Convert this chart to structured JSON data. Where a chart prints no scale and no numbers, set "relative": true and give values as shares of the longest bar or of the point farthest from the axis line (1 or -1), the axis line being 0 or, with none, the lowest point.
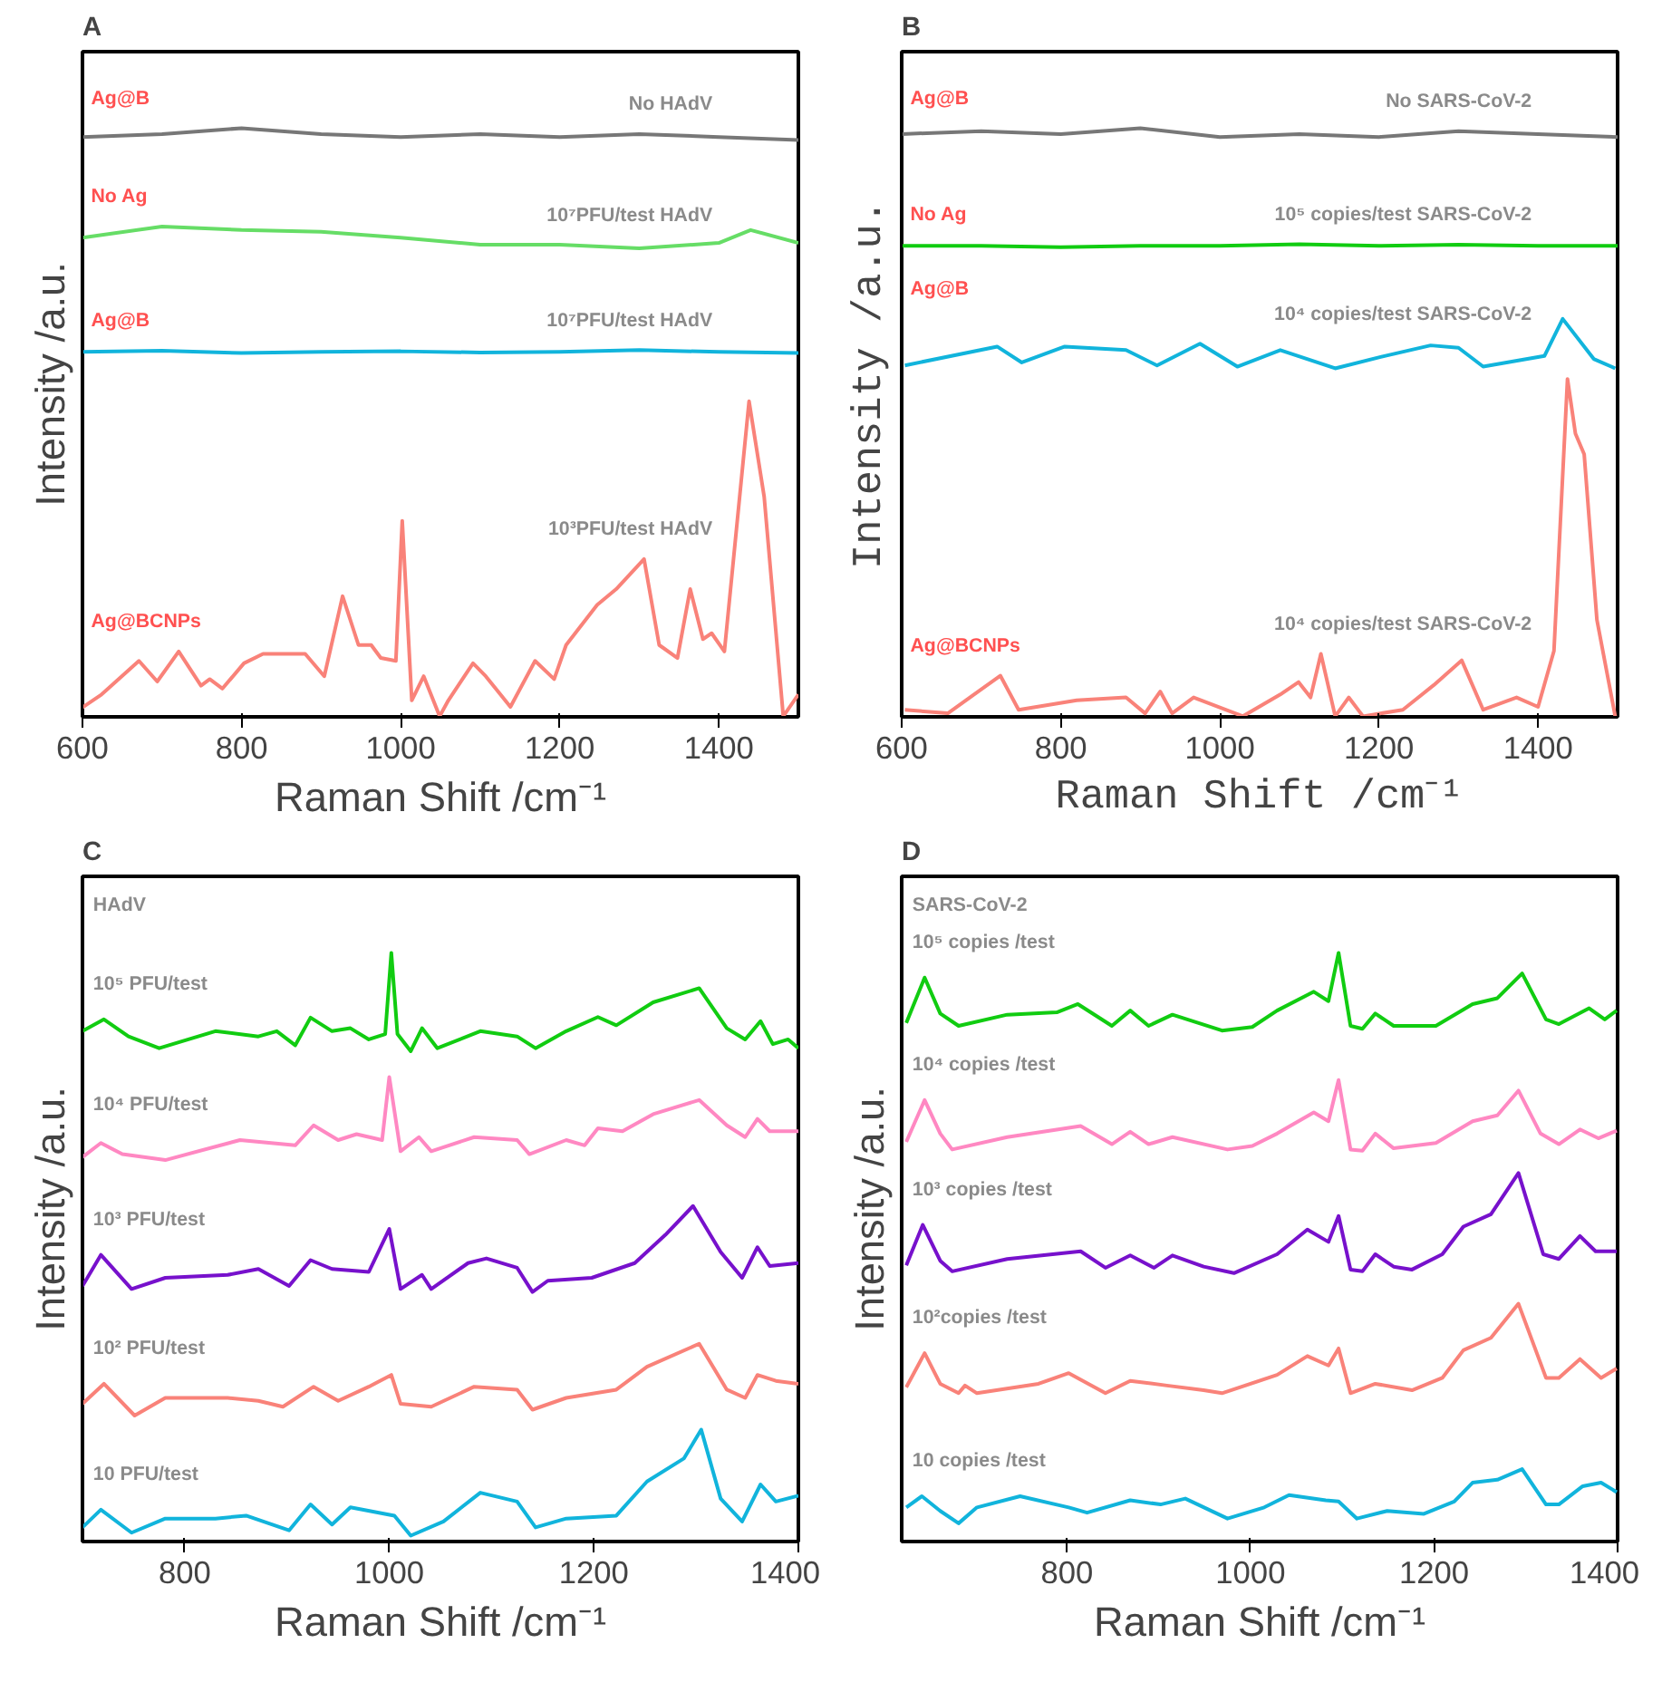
{
  "chart_data": [
    {
      "type": "line",
      "title": "A",
      "xlabel": "Raman Shift /cm⁻¹",
      "ylabel": "Intensity /a.u.",
      "relative": true,
      "grid": false,
      "xlim": [
        600,
        1500
      ],
      "xticks": [
        600,
        800,
        1000,
        1200,
        1400
      ],
      "annotations": [
        "Ag@B",
        "No HAdV",
        "No Ag",
        "10⁷PFU/test HAdV",
        "Ag@B",
        "10⁷PFU/test HAdV",
        "Ag@BCNPs",
        "10³PFU/test HAdV"
      ],
      "series": [
        {
          "color": "#777777",
          "x": [
            600,
            700,
            800,
            900,
            1000,
            1100,
            1200,
            1300,
            1400,
            1500
          ],
          "values": [
            0.985,
            0.99,
            1.0,
            0.99,
            0.985,
            0.99,
            0.985,
            0.99,
            0.985,
            0.98
          ]
        },
        {
          "color": "#66dd66",
          "x": [
            600,
            700,
            800,
            900,
            1000,
            1100,
            1200,
            1300,
            1400,
            1440,
            1500
          ],
          "values": [
            0.814,
            0.833,
            0.827,
            0.824,
            0.814,
            0.802,
            0.802,
            0.796,
            0.805,
            0.827,
            0.805
          ]
        },
        {
          "color": "#11b4dc",
          "x": [
            600,
            700,
            800,
            900,
            1000,
            1100,
            1200,
            1300,
            1400,
            1500
          ],
          "values": [
            0.62,
            0.622,
            0.618,
            0.62,
            0.621,
            0.619,
            0.62,
            0.623,
            0.62,
            0.618
          ]
        },
        {
          "color": "#f98279",
          "x": [
            600,
            624,
            671,
            694,
            721,
            749,
            760,
            776,
            803,
            827,
            880,
            904,
            927,
            947,
            963,
            975,
            994,
            1002,
            1014,
            1029,
            1049,
            1060,
            1091,
            1107,
            1138,
            1169,
            1193,
            1208,
            1247,
            1271,
            1306,
            1325,
            1348,
            1364,
            1380,
            1391,
            1407,
            1438,
            1457,
            1481,
            1500
          ],
          "values": [
            0.016,
            0.038,
            0.095,
            0.06,
            0.111,
            0.053,
            0.064,
            0.048,
            0.091,
            0.107,
            0.107,
            0.069,
            0.205,
            0.122,
            0.122,
            0.1,
            0.095,
            0.333,
            0.028,
            0.069,
            0.001,
            0.028,
            0.091,
            0.069,
            0.017,
            0.095,
            0.064,
            0.122,
            0.19,
            0.217,
            0.268,
            0.122,
            0.1,
            0.217,
            0.132,
            0.142,
            0.111,
            0.536,
            0.374,
            0.001,
            0.038
          ]
        }
      ]
    },
    {
      "type": "line",
      "title": "B",
      "xlabel": "Raman Shift /cm⁻¹",
      "ylabel": "Intensity /a.u.",
      "relative": true,
      "grid": false,
      "xlim": [
        600,
        1500
      ],
      "xticks": [
        600,
        800,
        1000,
        1200,
        1400
      ],
      "annotations": [
        "Ag@B",
        "No SARS-CoV-2",
        "No Ag",
        "10⁵ copies/test SARS-CoV-2",
        "Ag@B",
        "10⁴ copies/test SARS-CoV-2",
        "Ag@BCNPs",
        "10⁴ copies/test SARS-CoV-2"
      ],
      "series": [
        {
          "color": "#777777",
          "x": [
            600,
            700,
            800,
            900,
            1000,
            1100,
            1200,
            1300,
            1400,
            1500
          ],
          "values": [
            0.99,
            0.995,
            0.99,
            1.0,
            0.985,
            0.99,
            0.985,
            0.995,
            0.99,
            0.985
          ]
        },
        {
          "color": "#11cc11",
          "x": [
            600,
            700,
            800,
            900,
            1000,
            1100,
            1200,
            1300,
            1400,
            1500
          ],
          "values": [
            0.8,
            0.8,
            0.798,
            0.8,
            0.8,
            0.803,
            0.8,
            0.802,
            0.8,
            0.8
          ]
        },
        {
          "color": "#11b4dc",
          "x": [
            604,
            720,
            751,
            805,
            882,
            921,
            975,
            1022,
            1076,
            1145,
            1207,
            1265,
            1300,
            1331,
            1408,
            1431,
            1470,
            1497
          ],
          "values": [
            0.597,
            0.629,
            0.602,
            0.629,
            0.623,
            0.597,
            0.634,
            0.595,
            0.623,
            0.592,
            0.613,
            0.631,
            0.627,
            0.595,
            0.613,
            0.676,
            0.608,
            0.592
          ]
        },
        {
          "color": "#f98279",
          "x": [
            604,
            658,
            724,
            747,
            820,
            882,
            906,
            925,
            940,
            967,
            1029,
            1076,
            1099,
            1114,
            1127,
            1145,
            1162,
            1180,
            1230,
            1269,
            1304,
            1331,
            1373,
            1400,
            1420,
            1437,
            1447,
            1458,
            1474,
            1497
          ],
          "values": [
            0.012,
            0.006,
            0.07,
            0.012,
            0.028,
            0.033,
            0.006,
            0.043,
            0.006,
            0.033,
            0.001,
            0.038,
            0.059,
            0.033,
            0.107,
            0.001,
            0.033,
            0.001,
            0.012,
            0.054,
            0.096,
            0.012,
            0.033,
            0.017,
            0.112,
            0.574,
            0.481,
            0.446,
            0.165,
            0.001
          ]
        }
      ]
    },
    {
      "type": "line",
      "title": "C",
      "xlabel": "Raman Shift /cm⁻¹",
      "ylabel": "Intensity /a.u.",
      "relative": true,
      "grid": false,
      "xlim": [
        700,
        1400
      ],
      "xticks": [
        800,
        1000,
        1200,
        1400
      ],
      "annotations": [
        "HAdV",
        "10⁵ PFU/test",
        "10⁴ PFU/test",
        "10³ PFU/test",
        "10² PFU/test",
        "10 PFU/test"
      ],
      "series": [
        {
          "color": "#11cc11",
          "x": [
            700,
            721,
            745,
            775,
            830,
            872,
            890,
            908,
            923,
            944,
            962,
            980,
            996,
            1002,
            1008,
            1021,
            1032,
            1047,
            1089,
            1125,
            1143,
            1173,
            1204,
            1222,
            1258,
            1303,
            1330,
            1348,
            1363,
            1375,
            1390,
            1400
          ],
          "values": [
            0.867,
            0.887,
            0.858,
            0.838,
            0.867,
            0.858,
            0.867,
            0.843,
            0.89,
            0.867,
            0.872,
            0.853,
            0.862,
            1.0,
            0.862,
            0.833,
            0.872,
            0.838,
            0.867,
            0.858,
            0.838,
            0.867,
            0.891,
            0.877,
            0.916,
            0.94,
            0.872,
            0.853,
            0.884,
            0.845,
            0.853,
            0.838
          ]
        },
        {
          "color": "#ff88c2",
          "x": [
            700,
            718,
            739,
            781,
            854,
            908,
            926,
            950,
            968,
            993,
            1000,
            1011,
            1029,
            1041,
            1083,
            1125,
            1137,
            1173,
            1191,
            1204,
            1228,
            1258,
            1303,
            1330,
            1348,
            1360,
            1372,
            1400
          ],
          "values": [
            0.653,
            0.677,
            0.658,
            0.648,
            0.682,
            0.673,
            0.707,
            0.682,
            0.692,
            0.682,
            0.789,
            0.663,
            0.687,
            0.663,
            0.687,
            0.682,
            0.658,
            0.682,
            0.673,
            0.702,
            0.697,
            0.726,
            0.75,
            0.707,
            0.687,
            0.718,
            0.697,
            0.697
          ]
        },
        {
          "color": "#7711cc",
          "x": [
            700,
            718,
            748,
            781,
            842,
            872,
            902,
            923,
            944,
            980,
            1000,
            1011,
            1032,
            1041,
            1077,
            1095,
            1125,
            1140,
            1155,
            1198,
            1240,
            1270,
            1297,
            1324,
            1345,
            1360,
            1372,
            1400
          ],
          "values": [
            0.434,
            0.487,
            0.429,
            0.448,
            0.453,
            0.463,
            0.434,
            0.478,
            0.463,
            0.458,
            0.531,
            0.429,
            0.453,
            0.429,
            0.473,
            0.481,
            0.465,
            0.424,
            0.443,
            0.448,
            0.473,
            0.521,
            0.57,
            0.492,
            0.448,
            0.5,
            0.468,
            0.473
          ]
        },
        {
          "color": "#f98279",
          "x": [
            700,
            721,
            751,
            781,
            842,
            872,
            896,
            926,
            950,
            980,
            1002,
            1011,
            1041,
            1083,
            1125,
            1140,
            1173,
            1222,
            1252,
            1303,
            1330,
            1348,
            1360,
            1378,
            1400
          ],
          "values": [
            0.234,
            0.268,
            0.214,
            0.244,
            0.244,
            0.239,
            0.229,
            0.263,
            0.239,
            0.263,
            0.283,
            0.234,
            0.229,
            0.263,
            0.258,
            0.224,
            0.244,
            0.258,
            0.297,
            0.336,
            0.258,
            0.244,
            0.283,
            0.273,
            0.268
          ]
        },
        {
          "color": "#11b4dc",
          "x": [
            700,
            718,
            748,
            781,
            830,
            860,
            902,
            923,
            944,
            962,
            1005,
            1021,
            1053,
            1089,
            1125,
            1143,
            1173,
            1222,
            1252,
            1288,
            1305,
            1324,
            1345,
            1363,
            1378,
            1400
          ],
          "values": [
            0.024,
            0.054,
            0.015,
            0.039,
            0.039,
            0.044,
            0.019,
            0.063,
            0.029,
            0.058,
            0.044,
            0.01,
            0.034,
            0.083,
            0.068,
            0.024,
            0.039,
            0.044,
            0.102,
            0.141,
            0.19,
            0.073,
            0.034,
            0.097,
            0.068,
            0.078
          ]
        }
      ]
    },
    {
      "type": "line",
      "title": "D",
      "xlabel": "Raman Shift /cm⁻¹",
      "ylabel": "Intensity /a.u.",
      "relative": true,
      "grid": false,
      "xlim": [
        620,
        1400
      ],
      "xticks": [
        800,
        1000,
        1200,
        1400
      ],
      "annotations": [
        "SARS-CoV-2",
        "10⁵ copies /test",
        "10⁴ copies /test",
        "10³ copies /test",
        "10²copies /test",
        "10 copies /test"
      ],
      "series": [
        {
          "color": "#11cc11",
          "x": [
            625,
            645,
            662,
            682,
            735,
            789,
            812,
            849,
            869,
            889,
            915,
            969,
            1002,
            1029,
            1069,
            1085,
            1096,
            1109,
            1122,
            1136,
            1156,
            1202,
            1242,
            1269,
            1296,
            1322,
            1336,
            1369,
            1386,
            1399
          ],
          "values": [
            0.881,
            0.958,
            0.897,
            0.876,
            0.895,
            0.899,
            0.913,
            0.876,
            0.902,
            0.876,
            0.895,
            0.868,
            0.874,
            0.902,
            0.934,
            0.918,
            1.0,
            0.876,
            0.871,
            0.897,
            0.876,
            0.876,
            0.913,
            0.923,
            0.965,
            0.887,
            0.879,
            0.906,
            0.887,
            0.902
          ]
        },
        {
          "color": "#ff88c2",
          "x": [
            625,
            645,
            662,
            675,
            735,
            815,
            849,
            869,
            889,
            915,
            975,
            1002,
            1029,
            1069,
            1085,
            1096,
            1109,
            1122,
            1136,
            1156,
            1202,
            1242,
            1269,
            1292,
            1316,
            1336,
            1359,
            1379,
            1399
          ],
          "values": [
            0.679,
            0.75,
            0.693,
            0.666,
            0.687,
            0.706,
            0.675,
            0.696,
            0.675,
            0.687,
            0.666,
            0.672,
            0.693,
            0.729,
            0.714,
            0.784,
            0.666,
            0.664,
            0.693,
            0.668,
            0.677,
            0.714,
            0.724,
            0.766,
            0.693,
            0.675,
            0.7,
            0.685,
            0.698
          ]
        },
        {
          "color": "#7711cc",
          "x": [
            625,
            643,
            662,
            675,
            735,
            815,
            842,
            869,
            895,
            915,
            949,
            982,
            1029,
            1062,
            1085,
            1096,
            1109,
            1122,
            1136,
            1156,
            1176,
            1209,
            1232,
            1262,
            1292,
            1319,
            1336,
            1359,
            1376,
            1399
          ],
          "values": [
            0.469,
            0.538,
            0.477,
            0.459,
            0.48,
            0.493,
            0.465,
            0.486,
            0.465,
            0.486,
            0.467,
            0.456,
            0.488,
            0.53,
            0.509,
            0.553,
            0.462,
            0.459,
            0.488,
            0.467,
            0.462,
            0.488,
            0.535,
            0.556,
            0.626,
            0.488,
            0.48,
            0.519,
            0.493,
            0.493
          ]
        },
        {
          "color": "#f98279",
          "x": [
            625,
            645,
            662,
            682,
            689,
            702,
            769,
            802,
            842,
            869,
            909,
            949,
            969,
            1029,
            1062,
            1085,
            1096,
            1109,
            1136,
            1176,
            1209,
            1232,
            1262,
            1292,
            1322,
            1336,
            1359,
            1382,
            1399
          ],
          "values": [
            0.262,
            0.32,
            0.268,
            0.252,
            0.265,
            0.252,
            0.268,
            0.286,
            0.252,
            0.273,
            0.265,
            0.257,
            0.252,
            0.283,
            0.315,
            0.299,
            0.328,
            0.252,
            0.268,
            0.257,
            0.278,
            0.325,
            0.346,
            0.404,
            0.278,
            0.278,
            0.31,
            0.278,
            0.294
          ]
        },
        {
          "color": "#11b4dc",
          "x": [
            625,
            642,
            662,
            682,
            702,
            749,
            802,
            822,
            869,
            902,
            929,
            975,
            1015,
            1042,
            1082,
            1096,
            1116,
            1149,
            1189,
            1222,
            1242,
            1269,
            1296,
            1322,
            1336,
            1362,
            1382,
            1399
          ],
          "values": [
            0.058,
            0.077,
            0.052,
            0.031,
            0.058,
            0.077,
            0.058,
            0.049,
            0.07,
            0.063,
            0.073,
            0.039,
            0.058,
            0.079,
            0.07,
            0.068,
            0.039,
            0.052,
            0.047,
            0.068,
            0.1,
            0.105,
            0.123,
            0.063,
            0.063,
            0.094,
            0.1,
            0.084
          ]
        }
      ]
    }
  ]
}
